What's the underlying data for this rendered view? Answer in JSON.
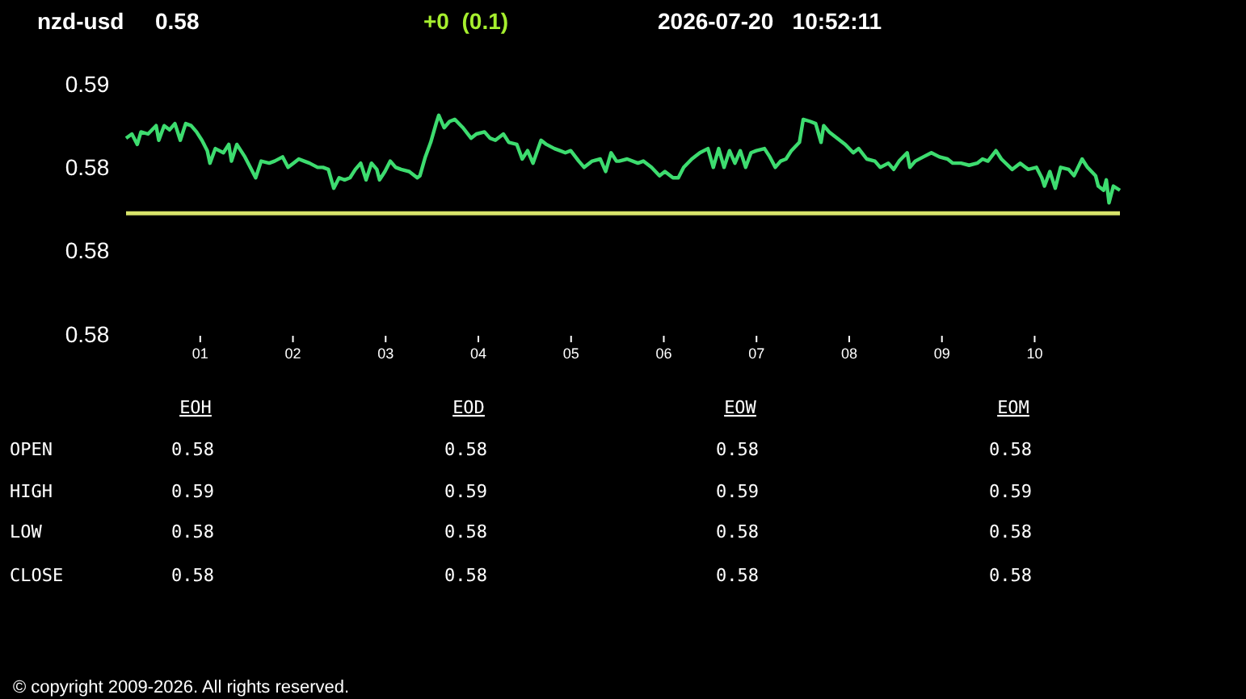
{
  "chart_data": [
    {
      "type": "line",
      "title": "nzd-usd",
      "annotations": [
        "0.58",
        "+0  (0.1)",
        "2026-07-20   10:52:11",
        "© copyright 2009-2026. All rights reserved."
      ],
      "xlim": [
        0.2,
        10.92
      ],
      "xticks": [
        {
          "value": 1,
          "label": "01"
        },
        {
          "value": 2,
          "label": "02"
        },
        {
          "value": 3,
          "label": "03"
        },
        {
          "value": 4,
          "label": "04"
        },
        {
          "value": 5,
          "label": "05"
        },
        {
          "value": 6,
          "label": "06"
        },
        {
          "value": 7,
          "label": "07"
        },
        {
          "value": 8,
          "label": "08"
        },
        {
          "value": 9,
          "label": "09"
        },
        {
          "value": 10,
          "label": "10"
        }
      ],
      "ylim": [
        0.576,
        0.588
      ],
      "yticks": [
        {
          "value": 0.588,
          "label": "0.59"
        },
        {
          "value": 0.584,
          "label": "0.58"
        },
        {
          "value": 0.58,
          "label": "0.58"
        },
        {
          "value": 0.576,
          "label": "0.58"
        }
      ],
      "grid": false,
      "marker": "none",
      "line_style": "solid",
      "ref_lines": [
        {
          "axis": "y",
          "value": 0.5818,
          "color": "#d8e46a"
        }
      ],
      "series": [
        {
          "color": "#3ddc6f",
          "x": [
            0.2,
            0.263,
            0.321,
            0.361,
            0.437,
            0.524,
            0.553,
            0.611,
            0.669,
            0.727,
            0.785,
            0.843,
            0.902,
            0.96,
            1.018,
            1.076,
            1.105,
            1.163,
            1.25,
            1.308,
            1.337,
            1.395,
            1.482,
            1.54,
            1.598,
            1.657,
            1.744,
            1.802,
            1.889,
            1.947,
            2.005,
            2.063,
            2.121,
            2.179,
            2.266,
            2.324,
            2.382,
            2.44,
            2.498,
            2.557,
            2.615,
            2.673,
            2.731,
            2.789,
            2.847,
            2.905,
            2.934,
            2.992,
            3.05,
            3.108,
            3.166,
            3.254,
            3.341,
            3.37,
            3.428,
            3.486,
            3.544,
            3.573,
            3.631,
            3.689,
            3.747,
            3.834,
            3.921,
            3.979,
            4.066,
            4.125,
            4.183,
            4.27,
            4.328,
            4.415,
            4.473,
            4.531,
            4.589,
            4.676,
            4.734,
            4.821,
            4.88,
            4.938,
            4.996,
            5.083,
            5.141,
            5.228,
            5.315,
            5.373,
            5.431,
            5.489,
            5.518,
            5.605,
            5.721,
            5.779,
            5.867,
            5.954,
            6.012,
            6.099,
            6.157,
            6.215,
            6.302,
            6.389,
            6.476,
            6.534,
            6.592,
            6.65,
            6.709,
            6.767,
            6.825,
            6.883,
            6.941,
            6.999,
            7.086,
            7.144,
            7.202,
            7.26,
            7.318,
            7.376,
            7.463,
            7.504,
            7.58,
            7.638,
            7.696,
            7.725,
            7.783,
            7.87,
            7.957,
            8.044,
            8.102,
            8.189,
            8.277,
            8.335,
            8.422,
            8.48,
            8.538,
            8.625,
            8.654,
            8.712,
            8.799,
            8.886,
            8.973,
            9.06,
            9.118,
            9.206,
            9.293,
            9.38,
            9.438,
            9.496,
            9.583,
            9.641,
            9.757,
            9.844,
            9.932,
            10.019,
            10.077,
            10.106,
            10.164,
            10.222,
            10.28,
            10.367,
            10.425,
            10.512,
            10.57,
            10.657,
            10.686,
            10.744,
            10.773,
            10.802,
            10.849,
            10.92
          ],
          "values": [
            0.5854,
            0.5856,
            0.5851,
            0.5857,
            0.5856,
            0.586,
            0.5853,
            0.586,
            0.5858,
            0.5861,
            0.5853,
            0.5861,
            0.586,
            0.5857,
            0.5853,
            0.5848,
            0.5842,
            0.5849,
            0.5847,
            0.5851,
            0.5843,
            0.5851,
            0.5845,
            0.584,
            0.5835,
            0.5843,
            0.5842,
            0.5843,
            0.5845,
            0.584,
            0.5842,
            0.5844,
            0.5843,
            0.5842,
            0.584,
            0.584,
            0.5839,
            0.583,
            0.5835,
            0.5834,
            0.5835,
            0.5839,
            0.5842,
            0.5834,
            0.5842,
            0.5839,
            0.5834,
            0.5838,
            0.5843,
            0.584,
            0.5839,
            0.5838,
            0.5835,
            0.5836,
            0.5845,
            0.5852,
            0.5861,
            0.5865,
            0.5859,
            0.5862,
            0.5863,
            0.5859,
            0.5854,
            0.5856,
            0.5857,
            0.5854,
            0.5853,
            0.5856,
            0.5852,
            0.5851,
            0.5844,
            0.5848,
            0.5842,
            0.5853,
            0.5851,
            0.5849,
            0.5848,
            0.5847,
            0.5848,
            0.5843,
            0.584,
            0.5843,
            0.5844,
            0.5838,
            0.5847,
            0.5843,
            0.5843,
            0.5844,
            0.5842,
            0.5843,
            0.584,
            0.5836,
            0.5838,
            0.5835,
            0.5835,
            0.584,
            0.5844,
            0.5847,
            0.5849,
            0.584,
            0.5849,
            0.584,
            0.5848,
            0.5842,
            0.5848,
            0.584,
            0.5847,
            0.5848,
            0.5849,
            0.5845,
            0.584,
            0.5843,
            0.5844,
            0.5848,
            0.5852,
            0.5863,
            0.5862,
            0.5861,
            0.5852,
            0.586,
            0.5857,
            0.5854,
            0.5851,
            0.5847,
            0.5849,
            0.5844,
            0.5843,
            0.584,
            0.5842,
            0.5839,
            0.5843,
            0.5847,
            0.584,
            0.5843,
            0.5845,
            0.5847,
            0.5845,
            0.5844,
            0.5842,
            0.5842,
            0.5841,
            0.5842,
            0.5844,
            0.5843,
            0.5848,
            0.5844,
            0.5839,
            0.5842,
            0.5839,
            0.584,
            0.5835,
            0.5831,
            0.5838,
            0.583,
            0.584,
            0.5839,
            0.5836,
            0.5844,
            0.584,
            0.5836,
            0.5831,
            0.5829,
            0.5834,
            0.5823,
            0.5831,
            0.5829
          ]
        }
      ]
    },
    {
      "type": "other",
      "categories": [
        "EOH",
        "EOD",
        "EOW",
        "EOM"
      ],
      "y_categories": [
        "OPEN",
        "HIGH",
        "LOW",
        "CLOSE"
      ],
      "cell_labels": [
        [
          "0.58",
          "0.58",
          "0.58",
          "0.58"
        ],
        [
          "0.59",
          "0.59",
          "0.59",
          "0.59"
        ],
        [
          "0.58",
          "0.58",
          "0.58",
          "0.58"
        ],
        [
          "0.58",
          "0.58",
          "0.58",
          "0.58"
        ]
      ]
    }
  ]
}
